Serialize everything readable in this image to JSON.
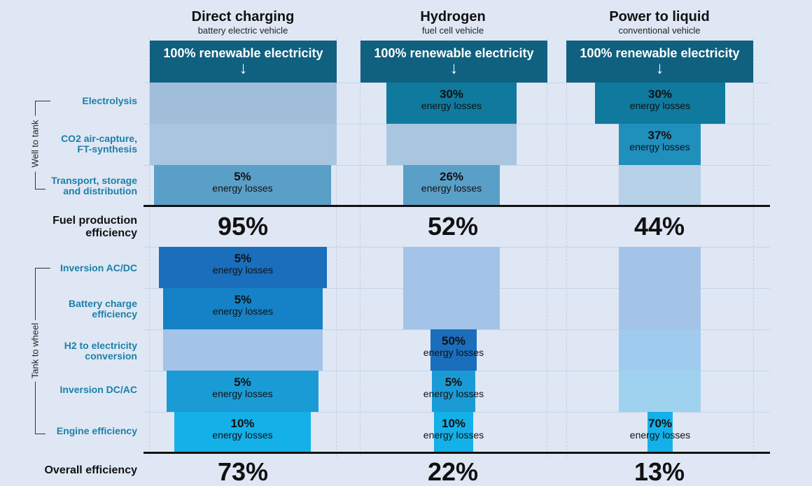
{
  "columns": [
    {
      "title": "Direct charging",
      "subtitle": "battery electric vehicle",
      "source": "100% renewable electricity"
    },
    {
      "title": "Hydrogen",
      "subtitle": "fuel cell vehicle",
      "source": "100% renewable electricity"
    },
    {
      "title": "Power to liquid",
      "subtitle": "conventional vehicle",
      "source": "100% renewable electricity"
    }
  ],
  "groups": {
    "well_to_tank": "Well to tank",
    "tank_to_wheel": "Tank to wheel"
  },
  "rows": {
    "electrolysis": "Electrolysis",
    "co2_line1": "CO2 air-capture,",
    "co2_line2": "FT-synthesis",
    "transport_line1": "Transport, storage",
    "transport_line2": "and distribution",
    "inversion_acdc": "Inversion AC/DC",
    "battery_line1": "Battery charge",
    "battery_line2": "efficiency",
    "h2_line1": "H2 to electricity",
    "h2_line2": "conversion",
    "inversion_dcac": "Inversion DC/AC",
    "engine": "Engine efficiency"
  },
  "fuel_production": {
    "label_line1": "Fuel production",
    "label_line2": "efficiency",
    "values": [
      "95%",
      "52%",
      "44%"
    ]
  },
  "overall": {
    "label": "Overall efficiency",
    "values": [
      "73%",
      "22%",
      "13%"
    ]
  },
  "loss_label": "energy losses",
  "losses": {
    "bev": {
      "transport": "5%",
      "inversion_acdc": "5%",
      "battery": "5%",
      "inversion_dcac": "5%",
      "engine": "10%"
    },
    "h2": {
      "electrolysis": "30%",
      "transport": "26%",
      "h2_conv": "50%",
      "inversion_dcac": "5%",
      "engine": "10%"
    },
    "ptl": {
      "electrolysis": "30%",
      "co2": "37%",
      "engine": "70%"
    }
  },
  "colors": {
    "source": "#10607f",
    "electrolysis": "#0f7a9e",
    "co2": "#1f8fbc",
    "transport": "#5a9fc8",
    "inv_acdc": "#1a6ebc",
    "battery": "#1581c6",
    "inv_dcac": "#1a9bd6",
    "engine": "#14b0e8",
    "pale_top": "#a1bedb",
    "pale_mid": "#a9c6e1",
    "pale_low": "#b6d0e7",
    "pale_blue": "#a3c4e8",
    "pale_cyan": "#9fd2ef"
  }
}
